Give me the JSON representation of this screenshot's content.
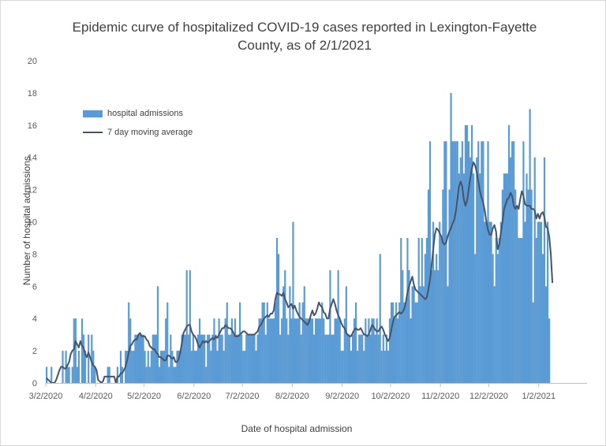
{
  "chart_data": {
    "type": "bar",
    "title": "Epidemic curve of hospitalized COVID-19 cases reported in Lexington-Fayette County, as of 2/1/2021",
    "xlabel": "Date of hospital admission",
    "ylabel": "Number of hospital admissions",
    "ylim": [
      0,
      20
    ],
    "y_ticks": [
      "0",
      "2",
      "4",
      "6",
      "8",
      "10",
      "12",
      "14",
      "16",
      "18",
      "20"
    ],
    "x_tick_labels": [
      "3/2/2020",
      "4/2/2020",
      "5/2/2020",
      "6/2/2020",
      "7/2/2020",
      "8/2/2020",
      "9/2/2020",
      "10/2/2020",
      "11/2/2020",
      "12/2/2020",
      "1/2/2021"
    ],
    "x_start": "3/2/2020",
    "x_end": "1/31/2021",
    "grid": false,
    "legend_position": "top-left",
    "series": [
      {
        "name": "hospital admissions",
        "kind": "bar",
        "color": "#5b9bd5",
        "values": [
          1,
          0,
          0,
          1,
          0,
          0,
          0,
          0,
          0,
          0,
          2,
          0,
          2,
          1,
          1,
          0,
          1,
          4,
          4,
          1,
          2,
          0,
          4,
          3,
          2,
          0,
          3,
          0,
          3,
          2,
          1,
          0,
          0,
          0,
          0,
          0,
          0,
          0,
          1,
          1,
          0,
          0,
          0,
          0,
          1,
          0,
          2,
          1,
          0,
          2,
          2,
          5,
          4,
          2,
          2,
          3,
          3,
          3,
          3,
          3,
          3,
          2,
          1,
          2,
          1,
          2,
          3,
          3,
          3,
          6,
          1,
          2,
          2,
          2,
          4,
          5,
          1,
          3,
          2,
          1,
          1,
          2,
          2,
          2,
          3,
          3,
          3,
          7,
          3,
          7,
          2,
          3,
          2,
          2,
          3,
          4,
          3,
          3,
          3,
          1,
          3,
          3,
          2,
          3,
          4,
          3,
          2,
          4,
          3,
          3,
          2,
          4,
          5,
          3,
          3,
          4,
          3,
          4,
          3,
          3,
          5,
          3,
          2,
          2,
          3,
          3,
          3,
          3,
          3,
          3,
          2,
          3,
          4,
          4,
          5,
          5,
          3,
          5,
          4,
          4,
          4,
          4,
          5,
          9,
          8,
          3,
          4,
          6,
          7,
          4,
          3,
          6,
          4,
          10,
          4,
          4,
          4,
          5,
          3,
          5,
          6,
          4,
          4,
          4,
          4,
          4,
          3,
          4,
          4,
          4,
          4,
          5,
          4,
          3,
          3,
          3,
          7,
          3,
          3,
          4,
          4,
          7,
          4,
          2,
          2,
          4,
          6,
          3,
          3,
          2,
          3,
          4,
          5,
          2,
          3,
          3,
          3,
          2,
          4,
          3,
          4,
          3,
          4,
          4,
          3,
          4,
          3,
          8,
          2,
          3,
          2,
          3,
          2,
          4,
          5,
          5,
          4,
          5,
          4,
          5,
          9,
          7,
          5,
          5,
          9,
          7,
          4,
          6,
          6,
          5,
          5,
          9,
          6,
          9,
          6,
          8,
          9,
          12,
          15,
          7,
          10,
          7,
          8,
          7,
          10,
          9,
          12,
          15,
          15,
          6,
          12,
          18,
          15,
          15,
          15,
          15,
          13,
          14,
          15,
          13,
          16,
          16,
          15,
          14,
          16,
          13,
          8,
          14,
          15,
          13,
          15,
          15,
          10,
          10,
          15,
          10,
          10,
          8,
          6,
          9,
          8,
          9,
          10,
          12,
          13,
          13,
          13,
          16,
          14,
          15,
          15,
          12,
          11,
          9,
          9,
          9,
          15,
          10,
          13,
          12,
          17,
          12,
          5,
          14,
          9,
          10,
          10,
          10,
          8,
          14,
          6,
          10,
          4
        ]
      },
      {
        "name": "7 day moving average",
        "kind": "line",
        "color": "#44546a",
        "values": [
          0.3,
          0.2,
          0.1,
          0.0,
          0.0,
          0.0,
          0.2,
          0.5,
          0.8,
          1.0,
          1.0,
          0.9,
          0.9,
          1.1,
          1.3,
          1.8,
          2.0,
          2.1,
          2.6,
          2.4,
          2.2,
          2.6,
          2.3,
          2.2,
          1.8,
          1.6,
          1.9,
          1.6,
          1.3,
          1.1,
          1.0,
          0.8,
          0.2,
          0.1,
          0.0,
          0.1,
          0.4,
          0.4,
          0.4,
          0.4,
          0.4,
          0.4,
          0.4,
          0.0,
          0.4,
          0.4,
          0.6,
          0.6,
          0.8,
          1.0,
          1.4,
          1.9,
          2.3,
          2.4,
          2.6,
          2.7,
          2.7,
          3.0,
          3.1,
          2.9,
          2.9,
          2.9,
          2.7,
          2.6,
          2.3,
          2.2,
          2.1,
          2.1,
          1.9,
          1.8,
          1.6,
          1.6,
          1.5,
          1.4,
          1.4,
          1.7,
          1.7,
          1.6,
          1.5,
          1.6,
          1.3,
          1.3,
          1.5,
          1.9,
          2.5,
          3.1,
          3.3,
          3.5,
          3.6,
          3.6,
          3.2,
          3.0,
          2.9,
          2.7,
          2.4,
          2.2,
          2.4,
          2.6,
          2.5,
          2.6,
          2.5,
          2.6,
          2.7,
          2.8,
          2.7,
          2.9,
          2.8,
          3.0,
          3.2,
          3.4,
          3.4,
          3.6,
          3.5,
          3.4,
          3.4,
          3.3,
          3.1,
          2.9,
          2.9,
          2.9,
          3.0,
          3.1,
          3.2,
          3.2,
          3.1,
          3.0,
          3.0,
          3.0,
          3.0,
          3.0,
          3.1,
          3.2,
          3.5,
          3.6,
          3.8,
          4.0,
          4.1,
          4.2,
          4.1,
          4.3,
          4.3,
          4.5,
          5.2,
          5.6,
          5.5,
          5.5,
          5.4,
          5.6,
          5.2,
          5.0,
          4.7,
          4.8,
          4.9,
          4.6,
          4.8,
          4.5,
          4.3,
          4.1,
          4.0,
          3.9,
          3.8,
          3.7,
          3.6,
          3.8,
          4.2,
          4.5,
          4.2,
          4.3,
          4.6,
          5.0,
          4.8,
          4.7,
          4.4,
          4.3,
          4.0,
          4.0,
          4.6,
          4.9,
          5.2,
          4.9,
          4.5,
          4.2,
          4.0,
          3.7,
          3.5,
          3.4,
          3.1,
          3.0,
          2.9,
          2.9,
          3.1,
          3.3,
          3.4,
          3.3,
          3.3,
          3.4,
          3.2,
          3.0,
          3.0,
          2.9,
          3.0,
          3.3,
          3.6,
          3.5,
          3.3,
          3.2,
          3.2,
          3.4,
          3.5,
          3.3,
          3.0,
          2.8,
          2.6,
          2.8,
          3.3,
          3.8,
          4.1,
          4.2,
          4.3,
          4.4,
          4.3,
          4.4,
          4.6,
          5.0,
          5.6,
          6.0,
          6.3,
          6.6,
          6.1,
          5.8,
          5.7,
          5.6,
          5.5,
          5.4,
          5.3,
          5.2,
          5.3,
          5.8,
          6.4,
          7.3,
          8.3,
          9.2,
          9.6,
          9.5,
          9.3,
          9.1,
          8.7,
          8.6,
          8.7,
          9.1,
          9.4,
          9.6,
          9.9,
          10.1,
          10.6,
          11.4,
          12.2,
          12.5,
          12.2,
          11.4,
          11.0,
          11.3,
          12.0,
          12.7,
          13.3,
          13.7,
          13.5,
          13.1,
          12.5,
          11.9,
          11.5,
          11.2,
          10.7,
          10.0,
          9.5,
          9.2,
          9.2,
          9.6,
          9.8,
          9.4,
          8.3,
          8.6,
          9.3,
          10.0,
          10.8,
          11.1,
          11.4,
          11.5,
          11.8,
          11.6,
          11.0,
          10.8,
          11.0,
          10.8,
          11.4,
          11.9,
          11.6,
          11.1,
          11.0,
          11.0,
          11.0,
          10.8,
          10.8,
          10.7,
          10.2,
          10.5,
          10.2,
          10.5,
          10.6,
          10.3,
          9.7,
          9.6,
          9.1,
          8.0,
          6.2
        ]
      }
    ]
  }
}
